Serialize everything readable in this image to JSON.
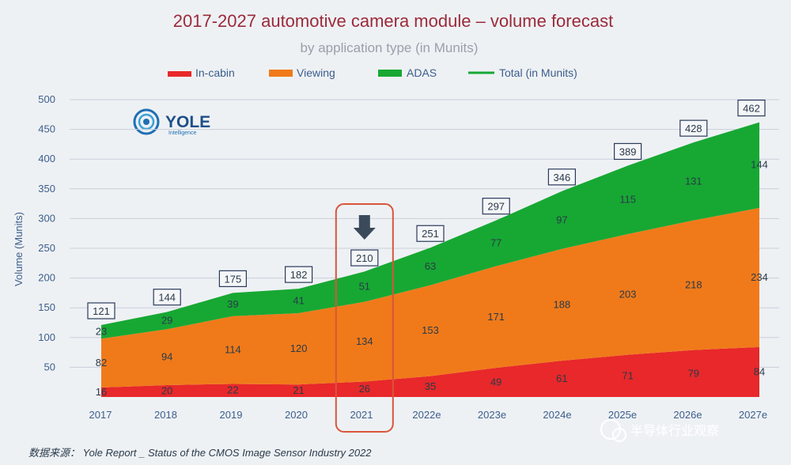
{
  "chart_data": {
    "type": "area",
    "title": "2017-2027 automotive camera module – volume forecast",
    "subtitle": "by application type (in Munits)",
    "ylabel": "Volume (Munits)",
    "xlabel": "",
    "ylim": [
      0,
      500
    ],
    "yticks": [
      50,
      100,
      150,
      200,
      250,
      300,
      350,
      400,
      450,
      500
    ],
    "categories": [
      "2017",
      "2018",
      "2019",
      "2020",
      "2021",
      "2022e",
      "2023e",
      "2024e",
      "2025e",
      "2026e",
      "2027e"
    ],
    "series": [
      {
        "name": "In-cabin",
        "color": "#e8282a",
        "values": [
          16,
          20,
          22,
          21,
          26,
          35,
          49,
          61,
          71,
          79,
          84
        ]
      },
      {
        "name": "Viewing",
        "color": "#f07a1a",
        "values": [
          82,
          94,
          114,
          120,
          134,
          153,
          171,
          188,
          203,
          218,
          234
        ]
      },
      {
        "name": "ADAS",
        "color": "#17a833",
        "values": [
          23,
          29,
          39,
          41,
          51,
          63,
          77,
          97,
          115,
          131,
          144
        ]
      }
    ],
    "total": {
      "name": "Total (in Munits)",
      "color": "#17a833",
      "values": [
        121,
        144,
        175,
        182,
        210,
        251,
        297,
        346,
        389,
        428,
        462
      ]
    },
    "highlight_category": "2021",
    "grid": true,
    "legend_position": "top"
  },
  "logo": {
    "name": "YOLE",
    "sub": "Intelligence"
  },
  "source_text": "数据来源： Yole Report _ Status of the CMOS Image Sensor Industry 2022",
  "watermark_text": "半导体行业观察"
}
